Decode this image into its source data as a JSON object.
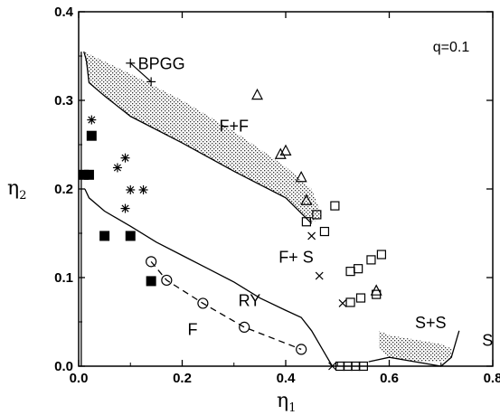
{
  "chart_data": {
    "type": "scatter",
    "title": "",
    "xlabel": "η",
    "xlabel_sub": "1",
    "ylabel": "η",
    "ylabel_sub": "2",
    "xlim": [
      0,
      0.8
    ],
    "ylim": [
      0,
      0.4
    ],
    "x_ticks": [
      "0.0",
      "0.2",
      "0.4",
      "0.6",
      "0.8"
    ],
    "x_tick_values": [
      0,
      0.2,
      0.4,
      0.6,
      0.8
    ],
    "y_ticks": [
      "0.0",
      "0.1",
      "0.2",
      "0.3",
      "0.4"
    ],
    "y_tick_values": [
      0,
      0.1,
      0.2,
      0.3,
      0.4
    ],
    "grid": false,
    "annotation": "q=0.1",
    "region_labels": [
      {
        "text": "BPGG",
        "x": 0.16,
        "y": 0.335
      },
      {
        "text": "F+F",
        "x": 0.3,
        "y": 0.265
      },
      {
        "text": "F+ S",
        "x": 0.42,
        "y": 0.117
      },
      {
        "text": "RY",
        "x": 0.33,
        "y": 0.068
      },
      {
        "text": "F",
        "x": 0.22,
        "y": 0.035
      },
      {
        "text": "S+S",
        "x": 0.68,
        "y": 0.043
      },
      {
        "text": "S",
        "x": 0.79,
        "y": 0.023
      }
    ],
    "series": [
      {
        "marker": "plus",
        "points": [
          [
            0.1,
            0.342
          ],
          [
            0.14,
            0.321
          ]
        ]
      },
      {
        "marker": "asterisk",
        "points": [
          [
            0.025,
            0.278
          ],
          [
            0.09,
            0.235
          ],
          [
            0.075,
            0.224
          ],
          [
            0.09,
            0.178
          ],
          [
            0.1,
            0.199
          ],
          [
            0.125,
            0.199
          ]
        ]
      },
      {
        "marker": "filled-square",
        "points": [
          [
            0.025,
            0.26
          ],
          [
            0.01,
            0.216
          ],
          [
            0.02,
            0.216
          ],
          [
            0.05,
            0.147
          ],
          [
            0.1,
            0.147
          ],
          [
            0.14,
            0.096
          ]
        ]
      },
      {
        "marker": "open-circle",
        "points": [
          [
            0.14,
            0.118
          ],
          [
            0.17,
            0.097
          ],
          [
            0.24,
            0.071
          ],
          [
            0.32,
            0.044
          ],
          [
            0.43,
            0.019
          ]
        ]
      },
      {
        "marker": "open-triangle",
        "points": [
          [
            0.345,
            0.306
          ],
          [
            0.4,
            0.243
          ],
          [
            0.39,
            0.239
          ],
          [
            0.43,
            0.213
          ],
          [
            0.44,
            0.187
          ],
          [
            0.575,
            0.085
          ]
        ]
      },
      {
        "marker": "open-square",
        "points": [
          [
            0.44,
            0.163
          ],
          [
            0.46,
            0.171
          ],
          [
            0.495,
            0.181
          ],
          [
            0.475,
            0.152
          ],
          [
            0.525,
            0.107
          ],
          [
            0.54,
            0.11
          ],
          [
            0.565,
            0.12
          ],
          [
            0.585,
            0.126
          ],
          [
            0.525,
            0.072
          ],
          [
            0.545,
            0.077
          ],
          [
            0.575,
            0.081
          ],
          [
            0.505,
            0.0
          ],
          [
            0.52,
            0.0
          ],
          [
            0.535,
            0.0
          ],
          [
            0.55,
            0.0
          ]
        ]
      },
      {
        "marker": "cross",
        "points": [
          [
            0.465,
            0.102
          ],
          [
            0.51,
            0.071
          ],
          [
            0.45,
            0.147
          ],
          [
            0.49,
            0.0
          ]
        ]
      }
    ],
    "lines": [
      {
        "style": "solid",
        "points": [
          [
            0.01,
            0.355
          ],
          [
            0.015,
            0.345
          ],
          [
            0.02,
            0.32
          ],
          [
            0.05,
            0.305
          ],
          [
            0.1,
            0.282
          ],
          [
            0.2,
            0.252
          ],
          [
            0.3,
            0.22
          ],
          [
            0.4,
            0.19
          ],
          [
            0.45,
            0.161
          ]
        ]
      },
      {
        "style": "solid",
        "points": [
          [
            0.012,
            0.2
          ],
          [
            0.02,
            0.19
          ],
          [
            0.05,
            0.175
          ],
          [
            0.1,
            0.158
          ],
          [
            0.15,
            0.14
          ],
          [
            0.2,
            0.125
          ],
          [
            0.25,
            0.11
          ],
          [
            0.3,
            0.095
          ],
          [
            0.35,
            0.077
          ],
          [
            0.4,
            0.063
          ],
          [
            0.43,
            0.055
          ],
          [
            0.45,
            0.04
          ],
          [
            0.47,
            0.02
          ],
          [
            0.49,
            0.0
          ]
        ]
      },
      {
        "style": "solid",
        "points": [
          [
            0.005,
            0.355
          ],
          [
            0.005,
            0.0
          ]
        ]
      },
      {
        "style": "solid",
        "points": [
          [
            0.56,
            0.005
          ],
          [
            0.6,
            0.01
          ],
          [
            0.65,
            0.005
          ],
          [
            0.7,
            0.0
          ],
          [
            0.72,
            0.01
          ],
          [
            0.73,
            0.03
          ],
          [
            0.735,
            0.04
          ]
        ]
      },
      {
        "style": "dashed",
        "points": [
          [
            0.14,
            0.118
          ],
          [
            0.17,
            0.097
          ],
          [
            0.24,
            0.071
          ],
          [
            0.32,
            0.044
          ],
          [
            0.43,
            0.019
          ]
        ]
      }
    ],
    "shaded_regions": [
      {
        "points": [
          [
            0.01,
            0.355
          ],
          [
            0.1,
            0.33
          ],
          [
            0.2,
            0.3
          ],
          [
            0.3,
            0.265
          ],
          [
            0.4,
            0.225
          ],
          [
            0.45,
            0.2
          ],
          [
            0.47,
            0.17
          ],
          [
            0.45,
            0.161
          ],
          [
            0.4,
            0.19
          ],
          [
            0.3,
            0.22
          ],
          [
            0.2,
            0.252
          ],
          [
            0.1,
            0.282
          ],
          [
            0.05,
            0.305
          ],
          [
            0.02,
            0.32
          ]
        ]
      },
      {
        "points": [
          [
            0.58,
            0.04
          ],
          [
            0.6,
            0.035
          ],
          [
            0.65,
            0.03
          ],
          [
            0.7,
            0.025
          ],
          [
            0.72,
            0.02
          ],
          [
            0.72,
            0.01
          ],
          [
            0.7,
            0.005
          ],
          [
            0.65,
            0.005
          ],
          [
            0.6,
            0.01
          ],
          [
            0.58,
            0.02
          ]
        ]
      }
    ]
  }
}
